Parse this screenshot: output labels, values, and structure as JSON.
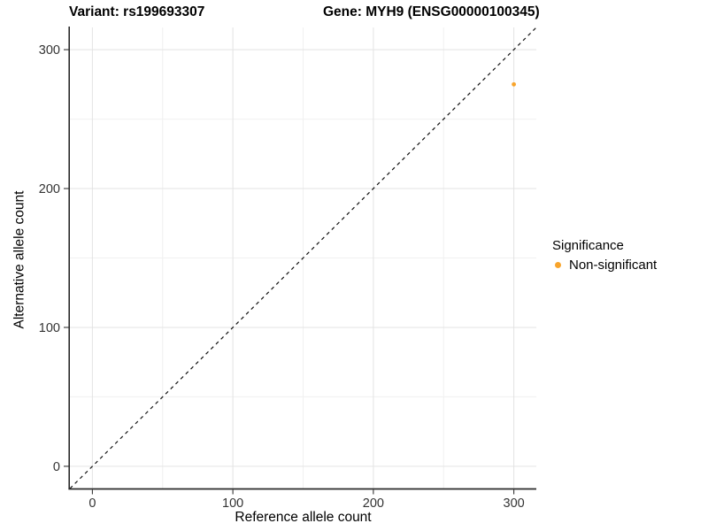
{
  "chart_data": {
    "type": "scatter",
    "title_left": "Variant: rs199693307",
    "title_right": "Gene: MYH9 (ENSG00000100345)",
    "xlabel": "Reference allele count",
    "ylabel": "Alternative allele count",
    "xlim": [
      -16,
      316
    ],
    "ylim": [
      -16,
      316
    ],
    "x_major_ticks": [
      0,
      100,
      200,
      300
    ],
    "y_major_ticks": [
      0,
      100,
      200,
      300
    ],
    "x_minor_ticks": [
      50,
      150,
      250
    ],
    "y_minor_ticks": [
      50,
      150,
      250
    ],
    "grid": true,
    "reference_line": {
      "type": "identity",
      "slope": 1,
      "intercept": 0,
      "style": "dashed",
      "color": "#111111"
    },
    "series": [
      {
        "name": "Non-significant",
        "color": "#F8A42B",
        "points": [
          {
            "x": 300,
            "y": 275
          }
        ]
      }
    ],
    "legend": {
      "title": "Significance",
      "position": "right",
      "entries": [
        {
          "label": "Non-significant",
          "color": "#F8A42B"
        }
      ]
    },
    "colors": {
      "grid_major": "#e3e3e3",
      "grid_minor": "#f0f0f0",
      "axis_line": "#2a2a2a",
      "tick_mark": "#333333",
      "tick_label": "#333333"
    }
  }
}
